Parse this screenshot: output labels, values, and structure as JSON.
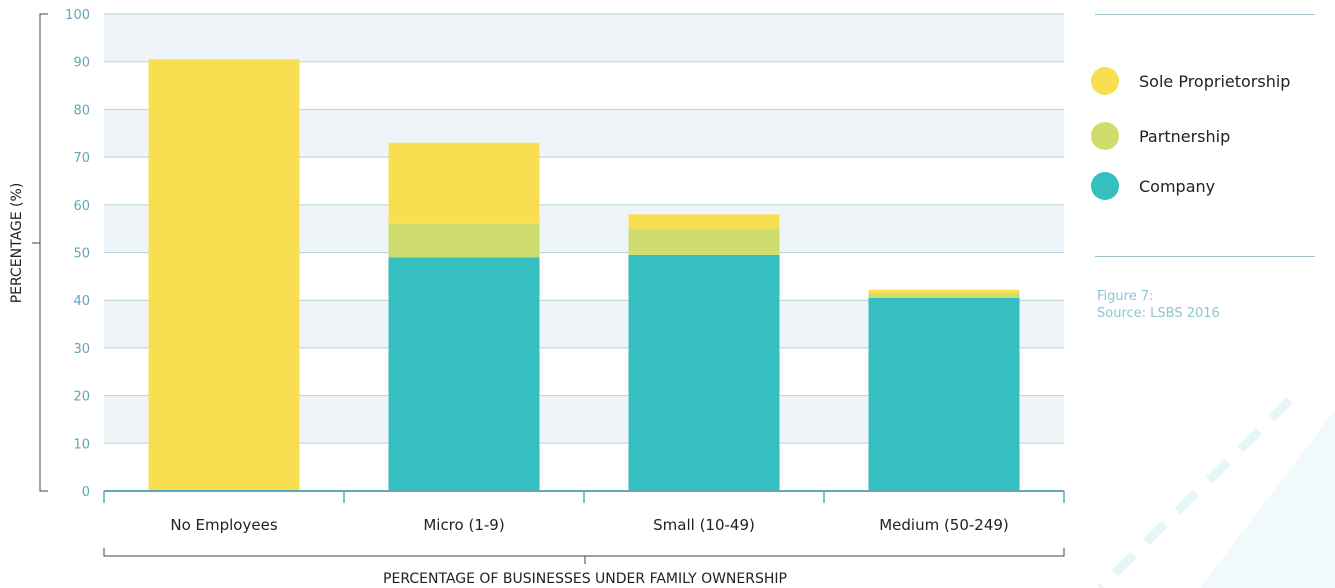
{
  "chart_data": {
    "type": "bar",
    "stacked": true,
    "categories": [
      "No Employees",
      "Micro (1-9)",
      "Small (10-49)",
      "Medium (50-249)"
    ],
    "series": [
      {
        "name": "Company",
        "color": "#36bfc0",
        "values": [
          0,
          49,
          49.5,
          40.5
        ]
      },
      {
        "name": "Partnership",
        "color": "#cfdd6e",
        "values": [
          0,
          7,
          5.5,
          1
        ]
      },
      {
        "name": "Sole Proprietorship",
        "color": "#f8df52",
        "values": [
          90.5,
          17,
          3,
          0.7
        ]
      }
    ],
    "xlabel": "PERCENTAGE OF BUSINESSES UNDER FAMILY OWNERSHIP",
    "ylabel": "PERCENTAGE (%)",
    "ylim": [
      0,
      100
    ],
    "yticks": [
      0,
      10,
      20,
      30,
      40,
      50,
      60,
      70,
      80,
      90,
      100
    ],
    "grid": true,
    "legend_position": "right"
  },
  "legend": {
    "items": [
      {
        "label": "Sole Proprietorship",
        "color": "#f8df52"
      },
      {
        "label": "Partnership",
        "color": "#cfdd6e"
      },
      {
        "label": "Company",
        "color": "#36bfc0"
      }
    ]
  },
  "source": {
    "figure": "Figure 7:",
    "text": "Source: LSBS 2016"
  }
}
